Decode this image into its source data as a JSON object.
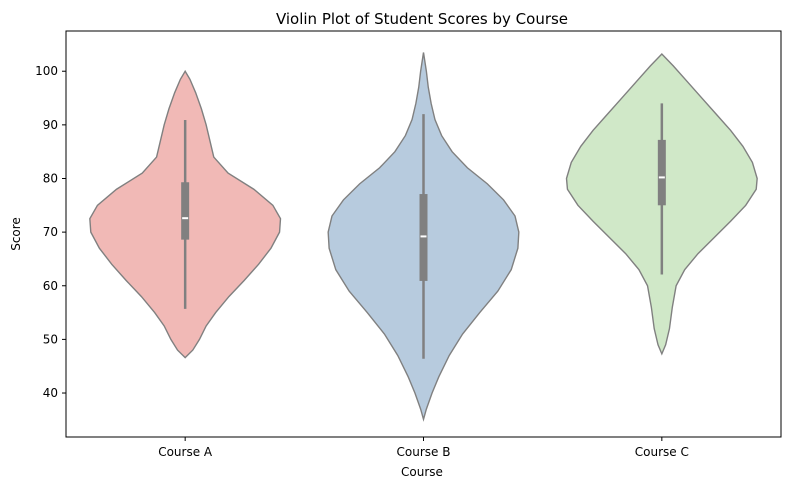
{
  "chart_data": {
    "type": "violin",
    "title": "Violin Plot of Student Scores by Course",
    "xlabel": "Course",
    "ylabel": "Score",
    "ylim": [
      31.8,
      107.5
    ],
    "yticks": [
      40,
      50,
      60,
      70,
      80,
      90,
      100
    ],
    "grid": false,
    "categories": [
      "Course A",
      "Course B",
      "Course C"
    ],
    "series": [
      {
        "category": "Course A",
        "color": "#f1b9b6",
        "box": {
          "whisker_low": 55.7,
          "q1": 68.6,
          "median": 72.6,
          "q3": 79.3,
          "whisker_high": 90.9
        },
        "extent": [
          46.6,
          100.0
        ],
        "density": [
          [
            46.6,
            0.0
          ],
          [
            48.0,
            0.08
          ],
          [
            50.0,
            0.15
          ],
          [
            52.5,
            0.22
          ],
          [
            55.0,
            0.32
          ],
          [
            58.0,
            0.46
          ],
          [
            61.0,
            0.62
          ],
          [
            64.0,
            0.77
          ],
          [
            67.0,
            0.9
          ],
          [
            70.0,
            0.99
          ],
          [
            72.5,
            1.0
          ],
          [
            75.0,
            0.92
          ],
          [
            78.0,
            0.72
          ],
          [
            81.0,
            0.45
          ],
          [
            84.0,
            0.3
          ],
          [
            87.0,
            0.26
          ],
          [
            90.0,
            0.22
          ],
          [
            93.0,
            0.17
          ],
          [
            96.0,
            0.11
          ],
          [
            98.5,
            0.05
          ],
          [
            100.0,
            0.0
          ]
        ]
      },
      {
        "category": "Course B",
        "color": "#b7cbde",
        "box": {
          "whisker_low": 46.4,
          "q1": 60.9,
          "median": 69.2,
          "q3": 77.1,
          "whisker_high": 92.0
        },
        "extent": [
          35.1,
          103.5
        ],
        "density": [
          [
            35.1,
            0.0
          ],
          [
            37.0,
            0.03
          ],
          [
            40.0,
            0.09
          ],
          [
            43.0,
            0.16
          ],
          [
            47.0,
            0.27
          ],
          [
            51.0,
            0.41
          ],
          [
            55.0,
            0.59
          ],
          [
            59.0,
            0.78
          ],
          [
            63.0,
            0.92
          ],
          [
            67.0,
            0.99
          ],
          [
            70.0,
            1.0
          ],
          [
            73.0,
            0.96
          ],
          [
            76.0,
            0.84
          ],
          [
            79.0,
            0.67
          ],
          [
            82.0,
            0.46
          ],
          [
            85.0,
            0.3
          ],
          [
            88.0,
            0.19
          ],
          [
            91.0,
            0.12
          ],
          [
            94.0,
            0.08
          ],
          [
            97.0,
            0.05
          ],
          [
            100.0,
            0.03
          ],
          [
            103.5,
            0.0
          ]
        ]
      },
      {
        "category": "Course C",
        "color": "#d0e8c8",
        "box": {
          "whisker_low": 62.1,
          "q1": 75.0,
          "median": 80.2,
          "q3": 87.2,
          "whisker_high": 94.0
        },
        "extent": [
          47.3,
          103.2
        ],
        "density": [
          [
            47.3,
            0.0
          ],
          [
            49.0,
            0.04
          ],
          [
            52.0,
            0.08
          ],
          [
            56.0,
            0.11
          ],
          [
            60.0,
            0.15
          ],
          [
            63.0,
            0.24
          ],
          [
            66.0,
            0.38
          ],
          [
            69.0,
            0.55
          ],
          [
            72.0,
            0.72
          ],
          [
            75.0,
            0.88
          ],
          [
            78.0,
            0.99
          ],
          [
            80.0,
            1.0
          ],
          [
            83.0,
            0.95
          ],
          [
            86.0,
            0.85
          ],
          [
            89.0,
            0.72
          ],
          [
            92.0,
            0.57
          ],
          [
            95.0,
            0.42
          ],
          [
            98.0,
            0.27
          ],
          [
            101.0,
            0.12
          ],
          [
            103.2,
            0.0
          ]
        ]
      }
    ]
  }
}
